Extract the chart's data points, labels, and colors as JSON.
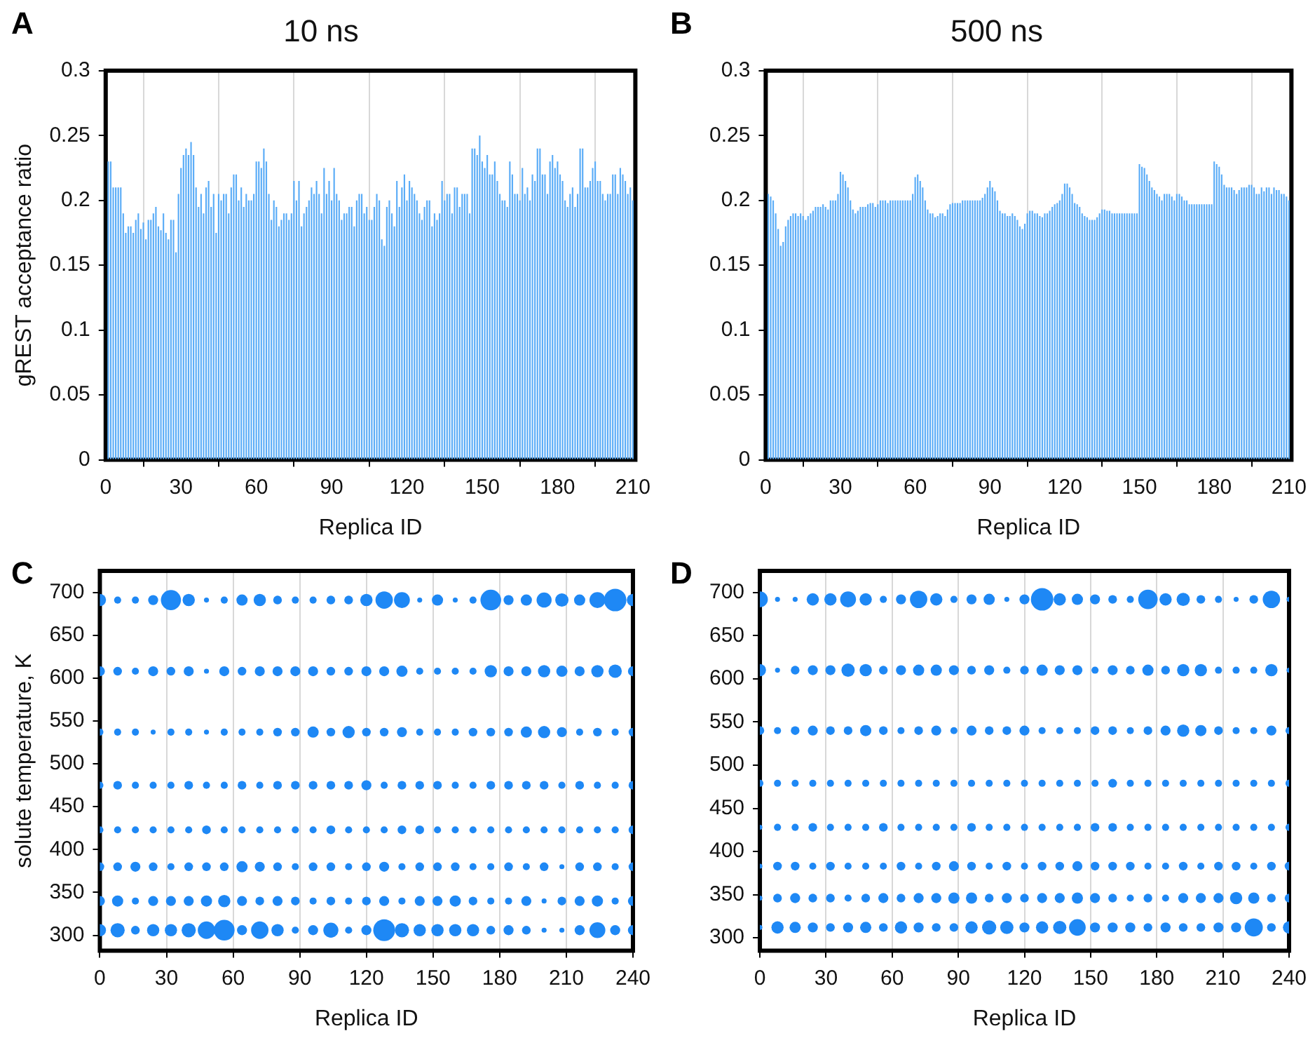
{
  "chart_data": [
    {
      "type": "bar",
      "title": "10 ns",
      "xlabel": "Replica ID",
      "ylabel": "gREST acceptance ratio",
      "annotations": [
        "A"
      ],
      "color": "#5aacf7",
      "grid": "x",
      "legend": false,
      "xlim": [
        0,
        211
      ],
      "xticks": [
        0,
        30,
        60,
        90,
        120,
        150,
        180,
        210
      ],
      "ylim": [
        0,
        0.3
      ],
      "yticks": [
        0,
        0.05,
        0.1,
        0.15,
        0.2,
        0.25,
        0.3
      ],
      "x": [
        1,
        2,
        3,
        4,
        5,
        6,
        7,
        8,
        9,
        10,
        11,
        12,
        13,
        14,
        15,
        16,
        17,
        18,
        19,
        20,
        21,
        22,
        23,
        24,
        25,
        26,
        27,
        28,
        29,
        30,
        31,
        32,
        33,
        34,
        35,
        36,
        37,
        38,
        39,
        40,
        41,
        42,
        43,
        44,
        45,
        46,
        47,
        48,
        49,
        50,
        51,
        52,
        53,
        54,
        55,
        56,
        57,
        58,
        59,
        60,
        61,
        62,
        63,
        64,
        65,
        66,
        67,
        68,
        69,
        70,
        71,
        72,
        73,
        74,
        75,
        76,
        77,
        78,
        79,
        80,
        81,
        82,
        83,
        84,
        85,
        86,
        87,
        88,
        89,
        90,
        91,
        92,
        93,
        94,
        95,
        96,
        97,
        98,
        99,
        100,
        101,
        102,
        103,
        104,
        105,
        106,
        107,
        108,
        109,
        110,
        111,
        112,
        113,
        114,
        115,
        116,
        117,
        118,
        119,
        120,
        121,
        122,
        123,
        124,
        125,
        126,
        127,
        128,
        129,
        130,
        131,
        132,
        133,
        134,
        135,
        136,
        137,
        138,
        139,
        140,
        141,
        142,
        143,
        144,
        145,
        146,
        147,
        148,
        149,
        150,
        151,
        152,
        153,
        154,
        155,
        156,
        157,
        158,
        159,
        160,
        161,
        162,
        163,
        164,
        165,
        166,
        167,
        168,
        169,
        170,
        171,
        172,
        173,
        174,
        175,
        176,
        177,
        178,
        179,
        180,
        181,
        182,
        183,
        184,
        185,
        186,
        187,
        188,
        189,
        190,
        191,
        192,
        193,
        194,
        195,
        196,
        197,
        198,
        199,
        200,
        201,
        202,
        203,
        204,
        205,
        206,
        207,
        208,
        209,
        210
      ],
      "values": [
        0.23,
        0.23,
        0.21,
        0.21,
        0.21,
        0.21,
        0.19,
        0.175,
        0.18,
        0.18,
        0.175,
        0.185,
        0.19,
        0.178,
        0.183,
        0.17,
        0.185,
        0.185,
        0.19,
        0.195,
        0.18,
        0.177,
        0.19,
        0.175,
        0.17,
        0.185,
        0.185,
        0.16,
        0.205,
        0.225,
        0.235,
        0.24,
        0.235,
        0.245,
        0.235,
        0.21,
        0.195,
        0.205,
        0.19,
        0.21,
        0.215,
        0.195,
        0.205,
        0.175,
        0.205,
        0.2,
        0.205,
        0.205,
        0.19,
        0.21,
        0.22,
        0.22,
        0.2,
        0.21,
        0.195,
        0.205,
        0.2,
        0.2,
        0.205,
        0.23,
        0.23,
        0.225,
        0.24,
        0.23,
        0.205,
        0.185,
        0.2,
        0.195,
        0.18,
        0.185,
        0.19,
        0.19,
        0.185,
        0.19,
        0.215,
        0.2,
        0.215,
        0.18,
        0.19,
        0.195,
        0.2,
        0.21,
        0.205,
        0.215,
        0.205,
        0.19,
        0.225,
        0.205,
        0.215,
        0.2,
        0.225,
        0.205,
        0.2,
        0.185,
        0.19,
        0.19,
        0.195,
        0.195,
        0.18,
        0.2,
        0.205,
        0.205,
        0.19,
        0.195,
        0.185,
        0.185,
        0.195,
        0.205,
        0.2,
        0.17,
        0.165,
        0.195,
        0.2,
        0.19,
        0.18,
        0.215,
        0.195,
        0.21,
        0.22,
        0.2,
        0.215,
        0.21,
        0.205,
        0.2,
        0.19,
        0.185,
        0.195,
        0.2,
        0.2,
        0.18,
        0.19,
        0.185,
        0.19,
        0.215,
        0.2,
        0.205,
        0.205,
        0.19,
        0.21,
        0.21,
        0.195,
        0.205,
        0.205,
        0.205,
        0.19,
        0.24,
        0.24,
        0.235,
        0.25,
        0.23,
        0.225,
        0.235,
        0.22,
        0.22,
        0.23,
        0.215,
        0.205,
        0.2,
        0.2,
        0.195,
        0.23,
        0.22,
        0.205,
        0.205,
        0.2,
        0.225,
        0.205,
        0.21,
        0.2,
        0.22,
        0.215,
        0.24,
        0.24,
        0.22,
        0.22,
        0.205,
        0.23,
        0.235,
        0.225,
        0.23,
        0.22,
        0.215,
        0.2,
        0.195,
        0.205,
        0.21,
        0.195,
        0.205,
        0.24,
        0.24,
        0.21,
        0.21,
        0.215,
        0.225,
        0.23,
        0.215,
        0.215,
        0.205,
        0.2,
        0.205,
        0.205,
        0.22,
        0.22,
        0.205,
        0.225,
        0.22,
        0.215,
        0.205,
        0.21,
        0.2
      ]
    },
    {
      "type": "bar",
      "title": "500 ns",
      "xlabel": "Replica ID",
      "annotations": [
        "B"
      ],
      "color": "#5aacf7",
      "grid": "x",
      "legend": false,
      "xlim": [
        0,
        211
      ],
      "xticks": [
        0,
        30,
        60,
        90,
        120,
        150,
        180,
        210
      ],
      "ylim": [
        0,
        0.3
      ],
      "yticks": [
        0,
        0.05,
        0.1,
        0.15,
        0.2,
        0.25,
        0.3
      ],
      "x": [
        1,
        2,
        3,
        4,
        5,
        6,
        7,
        8,
        9,
        10,
        11,
        12,
        13,
        14,
        15,
        16,
        17,
        18,
        19,
        20,
        21,
        22,
        23,
        24,
        25,
        26,
        27,
        28,
        29,
        30,
        31,
        32,
        33,
        34,
        35,
        36,
        37,
        38,
        39,
        40,
        41,
        42,
        43,
        44,
        45,
        46,
        47,
        48,
        49,
        50,
        51,
        52,
        53,
        54,
        55,
        56,
        57,
        58,
        59,
        60,
        61,
        62,
        63,
        64,
        65,
        66,
        67,
        68,
        69,
        70,
        71,
        72,
        73,
        74,
        75,
        76,
        77,
        78,
        79,
        80,
        81,
        82,
        83,
        84,
        85,
        86,
        87,
        88,
        89,
        90,
        91,
        92,
        93,
        94,
        95,
        96,
        97,
        98,
        99,
        100,
        101,
        102,
        103,
        104,
        105,
        106,
        107,
        108,
        109,
        110,
        111,
        112,
        113,
        114,
        115,
        116,
        117,
        118,
        119,
        120,
        121,
        122,
        123,
        124,
        125,
        126,
        127,
        128,
        129,
        130,
        131,
        132,
        133,
        134,
        135,
        136,
        137,
        138,
        139,
        140,
        141,
        142,
        143,
        144,
        145,
        146,
        147,
        148,
        149,
        150,
        151,
        152,
        153,
        154,
        155,
        156,
        157,
        158,
        159,
        160,
        161,
        162,
        163,
        164,
        165,
        166,
        167,
        168,
        169,
        170,
        171,
        172,
        173,
        174,
        175,
        176,
        177,
        178,
        179,
        180,
        181,
        182,
        183,
        184,
        185,
        186,
        187,
        188,
        189,
        190,
        191,
        192,
        193,
        194,
        195,
        196,
        197,
        198,
        199,
        200,
        201,
        202,
        203,
        204,
        205,
        206,
        207,
        208,
        209,
        210
      ],
      "values": [
        0.205,
        0.203,
        0.2,
        0.19,
        0.178,
        0.165,
        0.168,
        0.18,
        0.185,
        0.188,
        0.19,
        0.19,
        0.188,
        0.19,
        0.188,
        0.185,
        0.188,
        0.19,
        0.192,
        0.195,
        0.195,
        0.195,
        0.197,
        0.195,
        0.193,
        0.2,
        0.2,
        0.2,
        0.205,
        0.222,
        0.22,
        0.215,
        0.21,
        0.2,
        0.193,
        0.19,
        0.192,
        0.195,
        0.195,
        0.195,
        0.197,
        0.198,
        0.198,
        0.195,
        0.197,
        0.2,
        0.2,
        0.2,
        0.198,
        0.2,
        0.2,
        0.2,
        0.2,
        0.2,
        0.2,
        0.2,
        0.2,
        0.2,
        0.205,
        0.218,
        0.22,
        0.215,
        0.21,
        0.2,
        0.193,
        0.19,
        0.19,
        0.187,
        0.188,
        0.19,
        0.19,
        0.188,
        0.193,
        0.197,
        0.198,
        0.198,
        0.198,
        0.198,
        0.2,
        0.2,
        0.2,
        0.2,
        0.2,
        0.2,
        0.2,
        0.2,
        0.202,
        0.205,
        0.21,
        0.215,
        0.21,
        0.207,
        0.2,
        0.192,
        0.19,
        0.19,
        0.188,
        0.188,
        0.19,
        0.188,
        0.185,
        0.18,
        0.178,
        0.182,
        0.19,
        0.192,
        0.192,
        0.19,
        0.19,
        0.188,
        0.187,
        0.19,
        0.19,
        0.192,
        0.195,
        0.197,
        0.198,
        0.2,
        0.205,
        0.213,
        0.213,
        0.21,
        0.205,
        0.198,
        0.197,
        0.195,
        0.19,
        0.188,
        0.187,
        0.185,
        0.185,
        0.185,
        0.187,
        0.19,
        0.193,
        0.193,
        0.192,
        0.192,
        0.19,
        0.19,
        0.19,
        0.19,
        0.19,
        0.19,
        0.19,
        0.19,
        0.19,
        0.19,
        0.19,
        0.228,
        0.226,
        0.225,
        0.22,
        0.215,
        0.21,
        0.208,
        0.205,
        0.203,
        0.2,
        0.205,
        0.205,
        0.205,
        0.203,
        0.2,
        0.205,
        0.205,
        0.203,
        0.2,
        0.2,
        0.197,
        0.197,
        0.197,
        0.197,
        0.197,
        0.197,
        0.197,
        0.197,
        0.197,
        0.197,
        0.23,
        0.228,
        0.226,
        0.22,
        0.212,
        0.21,
        0.21,
        0.21,
        0.208,
        0.205,
        0.208,
        0.21,
        0.21,
        0.21,
        0.212,
        0.212,
        0.21,
        0.205,
        0.205,
        0.21,
        0.207,
        0.21,
        0.21,
        0.205,
        0.21,
        0.208,
        0.208,
        0.205,
        0.205,
        0.203,
        0.2
      ]
    },
    {
      "type": "bubble",
      "xlabel": "Replica ID",
      "ylabel": "solute temperature, K",
      "annotations": [
        "C"
      ],
      "grid": "x",
      "legend": false,
      "xlim": [
        0,
        240
      ],
      "xticks": [
        0,
        30,
        60,
        90,
        120,
        150,
        180,
        210,
        240
      ],
      "ylim": [
        282,
        725
      ],
      "yticks": [
        300,
        350,
        400,
        450,
        500,
        550,
        600,
        650,
        700
      ],
      "x": [
        0,
        8,
        16,
        24,
        32,
        40,
        48,
        56,
        64,
        72,
        80,
        88,
        96,
        104,
        112,
        120,
        128,
        136,
        144,
        152,
        160,
        168,
        176,
        184,
        192,
        200,
        208,
        216,
        224,
        232,
        240
      ],
      "series": [
        {
          "color": "#1e88f5",
          "values": [
            691,
            691,
            691,
            691,
            691,
            691,
            691,
            691,
            691,
            691,
            691,
            691,
            691,
            691,
            691,
            691,
            691,
            691,
            691,
            691,
            691,
            691,
            691,
            691,
            691,
            691,
            691,
            691,
            691,
            691,
            691
          ],
          "sizes": [
            0.3,
            0.1,
            0.1,
            0.2,
            0.8,
            0.3,
            0.05,
            0.1,
            0.25,
            0.3,
            0.15,
            0.1,
            0.1,
            0.15,
            0.15,
            0.3,
            0.6,
            0.5,
            0.05,
            0.25,
            0.05,
            0.1,
            0.85,
            0.2,
            0.25,
            0.45,
            0.35,
            0.25,
            0.5,
            1,
            0.3
          ]
        },
        {
          "color": "#1e88f5",
          "values": [
            608,
            608,
            608,
            608,
            608,
            608,
            608,
            608,
            608,
            608,
            608,
            608,
            608,
            608,
            608,
            608,
            608,
            608,
            608,
            608,
            608,
            608,
            608,
            608,
            608,
            608,
            608,
            608,
            608,
            608,
            608
          ],
          "sizes": [
            0.2,
            0.15,
            0.1,
            0.2,
            0.15,
            0.2,
            0.05,
            0.2,
            0.15,
            0.2,
            0.2,
            0.2,
            0.2,
            0.15,
            0.15,
            0.2,
            0.2,
            0.25,
            0.1,
            0.1,
            0.1,
            0.1,
            0.3,
            0.2,
            0.2,
            0.3,
            0.25,
            0.2,
            0.3,
            0.35,
            0.2
          ]
        },
        {
          "color": "#1e88f5",
          "values": [
            537,
            537,
            537,
            537,
            537,
            537,
            537,
            537,
            537,
            537,
            537,
            537,
            537,
            537,
            537,
            537,
            537,
            537,
            537,
            537,
            537,
            537,
            537,
            537,
            537,
            537,
            537,
            537,
            537,
            537,
            537
          ],
          "sizes": [
            0.1,
            0.1,
            0.1,
            0.05,
            0.1,
            0.1,
            0.05,
            0.1,
            0.1,
            0.1,
            0.15,
            0.15,
            0.25,
            0.15,
            0.3,
            0.15,
            0.15,
            0.2,
            0.1,
            0.1,
            0.1,
            0.15,
            0.15,
            0.15,
            0.25,
            0.3,
            0.2,
            0.1,
            0.15,
            0.1,
            0.15
          ]
        },
        {
          "color": "#1e88f5",
          "values": [
            475,
            475,
            475,
            475,
            475,
            475,
            475,
            475,
            475,
            475,
            475,
            475,
            475,
            475,
            475,
            475,
            475,
            475,
            475,
            475,
            475,
            475,
            475,
            475,
            475,
            475,
            475,
            475,
            475,
            475,
            475
          ],
          "sizes": [
            0.1,
            0.15,
            0.1,
            0.1,
            0.1,
            0.15,
            0.1,
            0.1,
            0.15,
            0.1,
            0.15,
            0.15,
            0.15,
            0.15,
            0.15,
            0.2,
            0.1,
            0.15,
            0.15,
            0.15,
            0.1,
            0.1,
            0.15,
            0.15,
            0.15,
            0.15,
            0.1,
            0.15,
            0.1,
            0.1,
            0.15
          ]
        },
        {
          "color": "#1e88f5",
          "values": [
            423,
            423,
            423,
            423,
            423,
            423,
            423,
            423,
            423,
            423,
            423,
            423,
            423,
            423,
            423,
            423,
            423,
            423,
            423,
            423,
            423,
            423,
            423,
            423,
            423,
            423,
            423,
            423,
            423,
            423,
            423
          ],
          "sizes": [
            0.1,
            0.1,
            0.1,
            0.1,
            0.1,
            0.1,
            0.15,
            0.1,
            0.1,
            0.1,
            0.1,
            0.1,
            0.1,
            0.15,
            0.1,
            0.1,
            0.1,
            0.15,
            0.15,
            0.1,
            0.1,
            0.1,
            0.1,
            0.1,
            0.1,
            0.1,
            0.1,
            0.1,
            0.1,
            0.1,
            0.15
          ]
        },
        {
          "color": "#1e88f5",
          "values": [
            380,
            380,
            380,
            380,
            380,
            380,
            380,
            380,
            380,
            380,
            380,
            380,
            380,
            380,
            380,
            380,
            380,
            380,
            380,
            380,
            380,
            380,
            380,
            380,
            380,
            380,
            380,
            380,
            380,
            380,
            380
          ],
          "sizes": [
            0.15,
            0.15,
            0.2,
            0.15,
            0.1,
            0.15,
            0.15,
            0.15,
            0.25,
            0.2,
            0.15,
            0.1,
            0.15,
            0.15,
            0.1,
            0.15,
            0.2,
            0.1,
            0.15,
            0.15,
            0.15,
            0.1,
            0.1,
            0.15,
            0.1,
            0.15,
            0.05,
            0.15,
            0.15,
            0.1,
            0.15
          ]
        },
        {
          "color": "#1e88f5",
          "values": [
            340,
            340,
            340,
            340,
            340,
            340,
            340,
            340,
            340,
            340,
            340,
            340,
            340,
            340,
            340,
            340,
            340,
            340,
            340,
            340,
            340,
            340,
            340,
            340,
            340,
            340,
            340,
            340,
            340,
            340,
            340
          ],
          "sizes": [
            0.2,
            0.25,
            0.1,
            0.2,
            0.2,
            0.2,
            0.25,
            0.3,
            0.2,
            0.15,
            0.2,
            0.15,
            0.1,
            0.15,
            0.1,
            0.15,
            0.2,
            0.1,
            0.2,
            0.2,
            0.25,
            0.15,
            0.1,
            0.1,
            0.2,
            0.05,
            0.15,
            0.2,
            0.25,
            0.1,
            0.2
          ]
        },
        {
          "color": "#1e88f5",
          "values": [
            306,
            306,
            306,
            306,
            306,
            306,
            306,
            306,
            306,
            306,
            306,
            306,
            306,
            306,
            306,
            306,
            306,
            306,
            306,
            306,
            306,
            306,
            306,
            306,
            306,
            306,
            306,
            306,
            306,
            306,
            306
          ],
          "sizes": [
            0.3,
            0.4,
            0.15,
            0.3,
            0.3,
            0.4,
            0.6,
            0.85,
            0.2,
            0.6,
            0.3,
            0.1,
            0.2,
            0.45,
            0.1,
            0.2,
            0.95,
            0.4,
            0.3,
            0.3,
            0.3,
            0.3,
            0.15,
            0.2,
            0.15,
            0.05,
            0.05,
            0.2,
            0.5,
            0.2,
            0.2
          ]
        }
      ]
    },
    {
      "type": "bubble",
      "xlabel": "Replica ID",
      "annotations": [
        "D"
      ],
      "grid": "x",
      "legend": false,
      "xlim": [
        0,
        240
      ],
      "xticks": [
        0,
        30,
        60,
        90,
        120,
        150,
        180,
        210,
        240
      ],
      "ylim": [
        285,
        725
      ],
      "yticks": [
        300,
        350,
        400,
        450,
        500,
        550,
        600,
        650,
        700
      ],
      "x": [
        0,
        8,
        16,
        24,
        32,
        40,
        48,
        56,
        64,
        72,
        80,
        88,
        96,
        104,
        112,
        120,
        128,
        136,
        144,
        152,
        160,
        168,
        176,
        184,
        192,
        200,
        208,
        216,
        224,
        232,
        240
      ],
      "series": [
        {
          "color": "#1e88f5",
          "values": [
            692,
            692,
            692,
            692,
            692,
            692,
            692,
            692,
            692,
            692,
            692,
            692,
            692,
            692,
            692,
            692,
            692,
            692,
            692,
            692,
            692,
            692,
            692,
            692,
            692,
            692,
            692,
            692,
            692,
            692,
            692
          ],
          "sizes": [
            0.5,
            0.05,
            0.05,
            0.3,
            0.3,
            0.5,
            0.3,
            0.1,
            0.2,
            0.6,
            0.3,
            0.1,
            0.2,
            0.25,
            0.05,
            0.2,
            1,
            0.3,
            0.25,
            0.2,
            0.15,
            0.1,
            0.75,
            0.3,
            0.35,
            0.15,
            0.1,
            0.05,
            0.15,
            0.6,
            0.05
          ]
        },
        {
          "color": "#1e88f5",
          "values": [
            610,
            610,
            610,
            610,
            610,
            610,
            610,
            610,
            610,
            610,
            610,
            610,
            610,
            610,
            610,
            610,
            610,
            610,
            610,
            610,
            610,
            610,
            610,
            610,
            610,
            610,
            610,
            610,
            610,
            610,
            610
          ],
          "sizes": [
            0.3,
            0.05,
            0.15,
            0.2,
            0.2,
            0.35,
            0.3,
            0.15,
            0.2,
            0.25,
            0.25,
            0.2,
            0.15,
            0.2,
            0.1,
            0.15,
            0.25,
            0.2,
            0.2,
            0.1,
            0.2,
            0.15,
            0.25,
            0.15,
            0.3,
            0.3,
            0.1,
            0.1,
            0.1,
            0.3,
            0.05
          ]
        },
        {
          "color": "#1e88f5",
          "values": [
            540,
            540,
            540,
            540,
            540,
            540,
            540,
            540,
            540,
            540,
            540,
            540,
            540,
            540,
            540,
            540,
            540,
            540,
            540,
            540,
            540,
            540,
            540,
            540,
            540,
            540,
            540,
            540,
            540,
            540,
            540
          ],
          "sizes": [
            0.15,
            0.1,
            0.15,
            0.2,
            0.15,
            0.15,
            0.25,
            0.15,
            0.1,
            0.15,
            0.2,
            0.1,
            0.2,
            0.15,
            0.15,
            0.2,
            0.1,
            0.1,
            0.1,
            0.15,
            0.15,
            0.1,
            0.15,
            0.2,
            0.3,
            0.25,
            0.15,
            0.1,
            0.1,
            0.2,
            0.1
          ]
        },
        {
          "color": "#1e88f5",
          "values": [
            479,
            479,
            479,
            479,
            479,
            479,
            479,
            479,
            479,
            479,
            479,
            479,
            479,
            479,
            479,
            479,
            479,
            479,
            479,
            479,
            479,
            479,
            479,
            479,
            479,
            479,
            479,
            479,
            479,
            479,
            479
          ],
          "sizes": [
            0.1,
            0.1,
            0.1,
            0.1,
            0.1,
            0.1,
            0.1,
            0.1,
            0.1,
            0.1,
            0.1,
            0.1,
            0.1,
            0.1,
            0.1,
            0.1,
            0.1,
            0.1,
            0.1,
            0.1,
            0.15,
            0.1,
            0.1,
            0.1,
            0.1,
            0.1,
            0.1,
            0.1,
            0.1,
            0.1,
            0.1
          ]
        },
        {
          "color": "#1e88f5",
          "values": [
            428,
            428,
            428,
            428,
            428,
            428,
            428,
            428,
            428,
            428,
            428,
            428,
            428,
            428,
            428,
            428,
            428,
            428,
            428,
            428,
            428,
            428,
            428,
            428,
            428,
            428,
            428,
            428,
            428,
            428,
            428
          ],
          "sizes": [
            0.05,
            0.1,
            0.1,
            0.15,
            0.1,
            0.1,
            0.1,
            0.15,
            0.1,
            0.1,
            0.1,
            0.1,
            0.15,
            0.1,
            0.1,
            0.1,
            0.1,
            0.1,
            0.1,
            0.15,
            0.15,
            0.1,
            0.1,
            0.1,
            0.1,
            0.1,
            0.1,
            0.1,
            0.1,
            0.1,
            0.1
          ]
        },
        {
          "color": "#1e88f5",
          "values": [
            383,
            383,
            383,
            383,
            383,
            383,
            383,
            383,
            383,
            383,
            383,
            383,
            383,
            383,
            383,
            383,
            383,
            383,
            383,
            383,
            383,
            383,
            383,
            383,
            383,
            383,
            383,
            383,
            383,
            383,
            383
          ],
          "sizes": [
            0.05,
            0.15,
            0.15,
            0.1,
            0.15,
            0.1,
            0.1,
            0.1,
            0.15,
            0.1,
            0.15,
            0.2,
            0.15,
            0.1,
            0.15,
            0.1,
            0.15,
            0.15,
            0.2,
            0.15,
            0.15,
            0.15,
            0.1,
            0.1,
            0.15,
            0.1,
            0.15,
            0.15,
            0.1,
            0.15,
            0.15
          ]
        },
        {
          "color": "#1e88f5",
          "values": [
            346,
            346,
            346,
            346,
            346,
            346,
            346,
            346,
            346,
            346,
            346,
            346,
            346,
            346,
            346,
            346,
            346,
            346,
            346,
            346,
            346,
            346,
            346,
            346,
            346,
            346,
            346,
            346,
            346,
            346,
            346
          ],
          "sizes": [
            0.05,
            0.15,
            0.2,
            0.15,
            0.15,
            0.1,
            0.15,
            0.2,
            0.15,
            0.2,
            0.2,
            0.25,
            0.25,
            0.15,
            0.2,
            0.15,
            0.2,
            0.2,
            0.25,
            0.2,
            0.15,
            0.1,
            0.15,
            0.1,
            0.2,
            0.2,
            0.2,
            0.3,
            0.25,
            0.15,
            0.15
          ]
        },
        {
          "color": "#1e88f5",
          "values": [
            312,
            312,
            312,
            312,
            312,
            312,
            312,
            312,
            312,
            312,
            312,
            312,
            312,
            312,
            312,
            312,
            312,
            312,
            312,
            312,
            312,
            312,
            312,
            312,
            312,
            312,
            312,
            312,
            312,
            312,
            312
          ],
          "sizes": [
            0.05,
            0.3,
            0.25,
            0.2,
            0.15,
            0.2,
            0.25,
            0.15,
            0.3,
            0.2,
            0.15,
            0.15,
            0.3,
            0.4,
            0.35,
            0.2,
            0.3,
            0.35,
            0.55,
            0.2,
            0.2,
            0.2,
            0.15,
            0.2,
            0.15,
            0.15,
            0.2,
            0.2,
            0.65,
            0.15,
            0.3
          ]
        }
      ]
    }
  ]
}
